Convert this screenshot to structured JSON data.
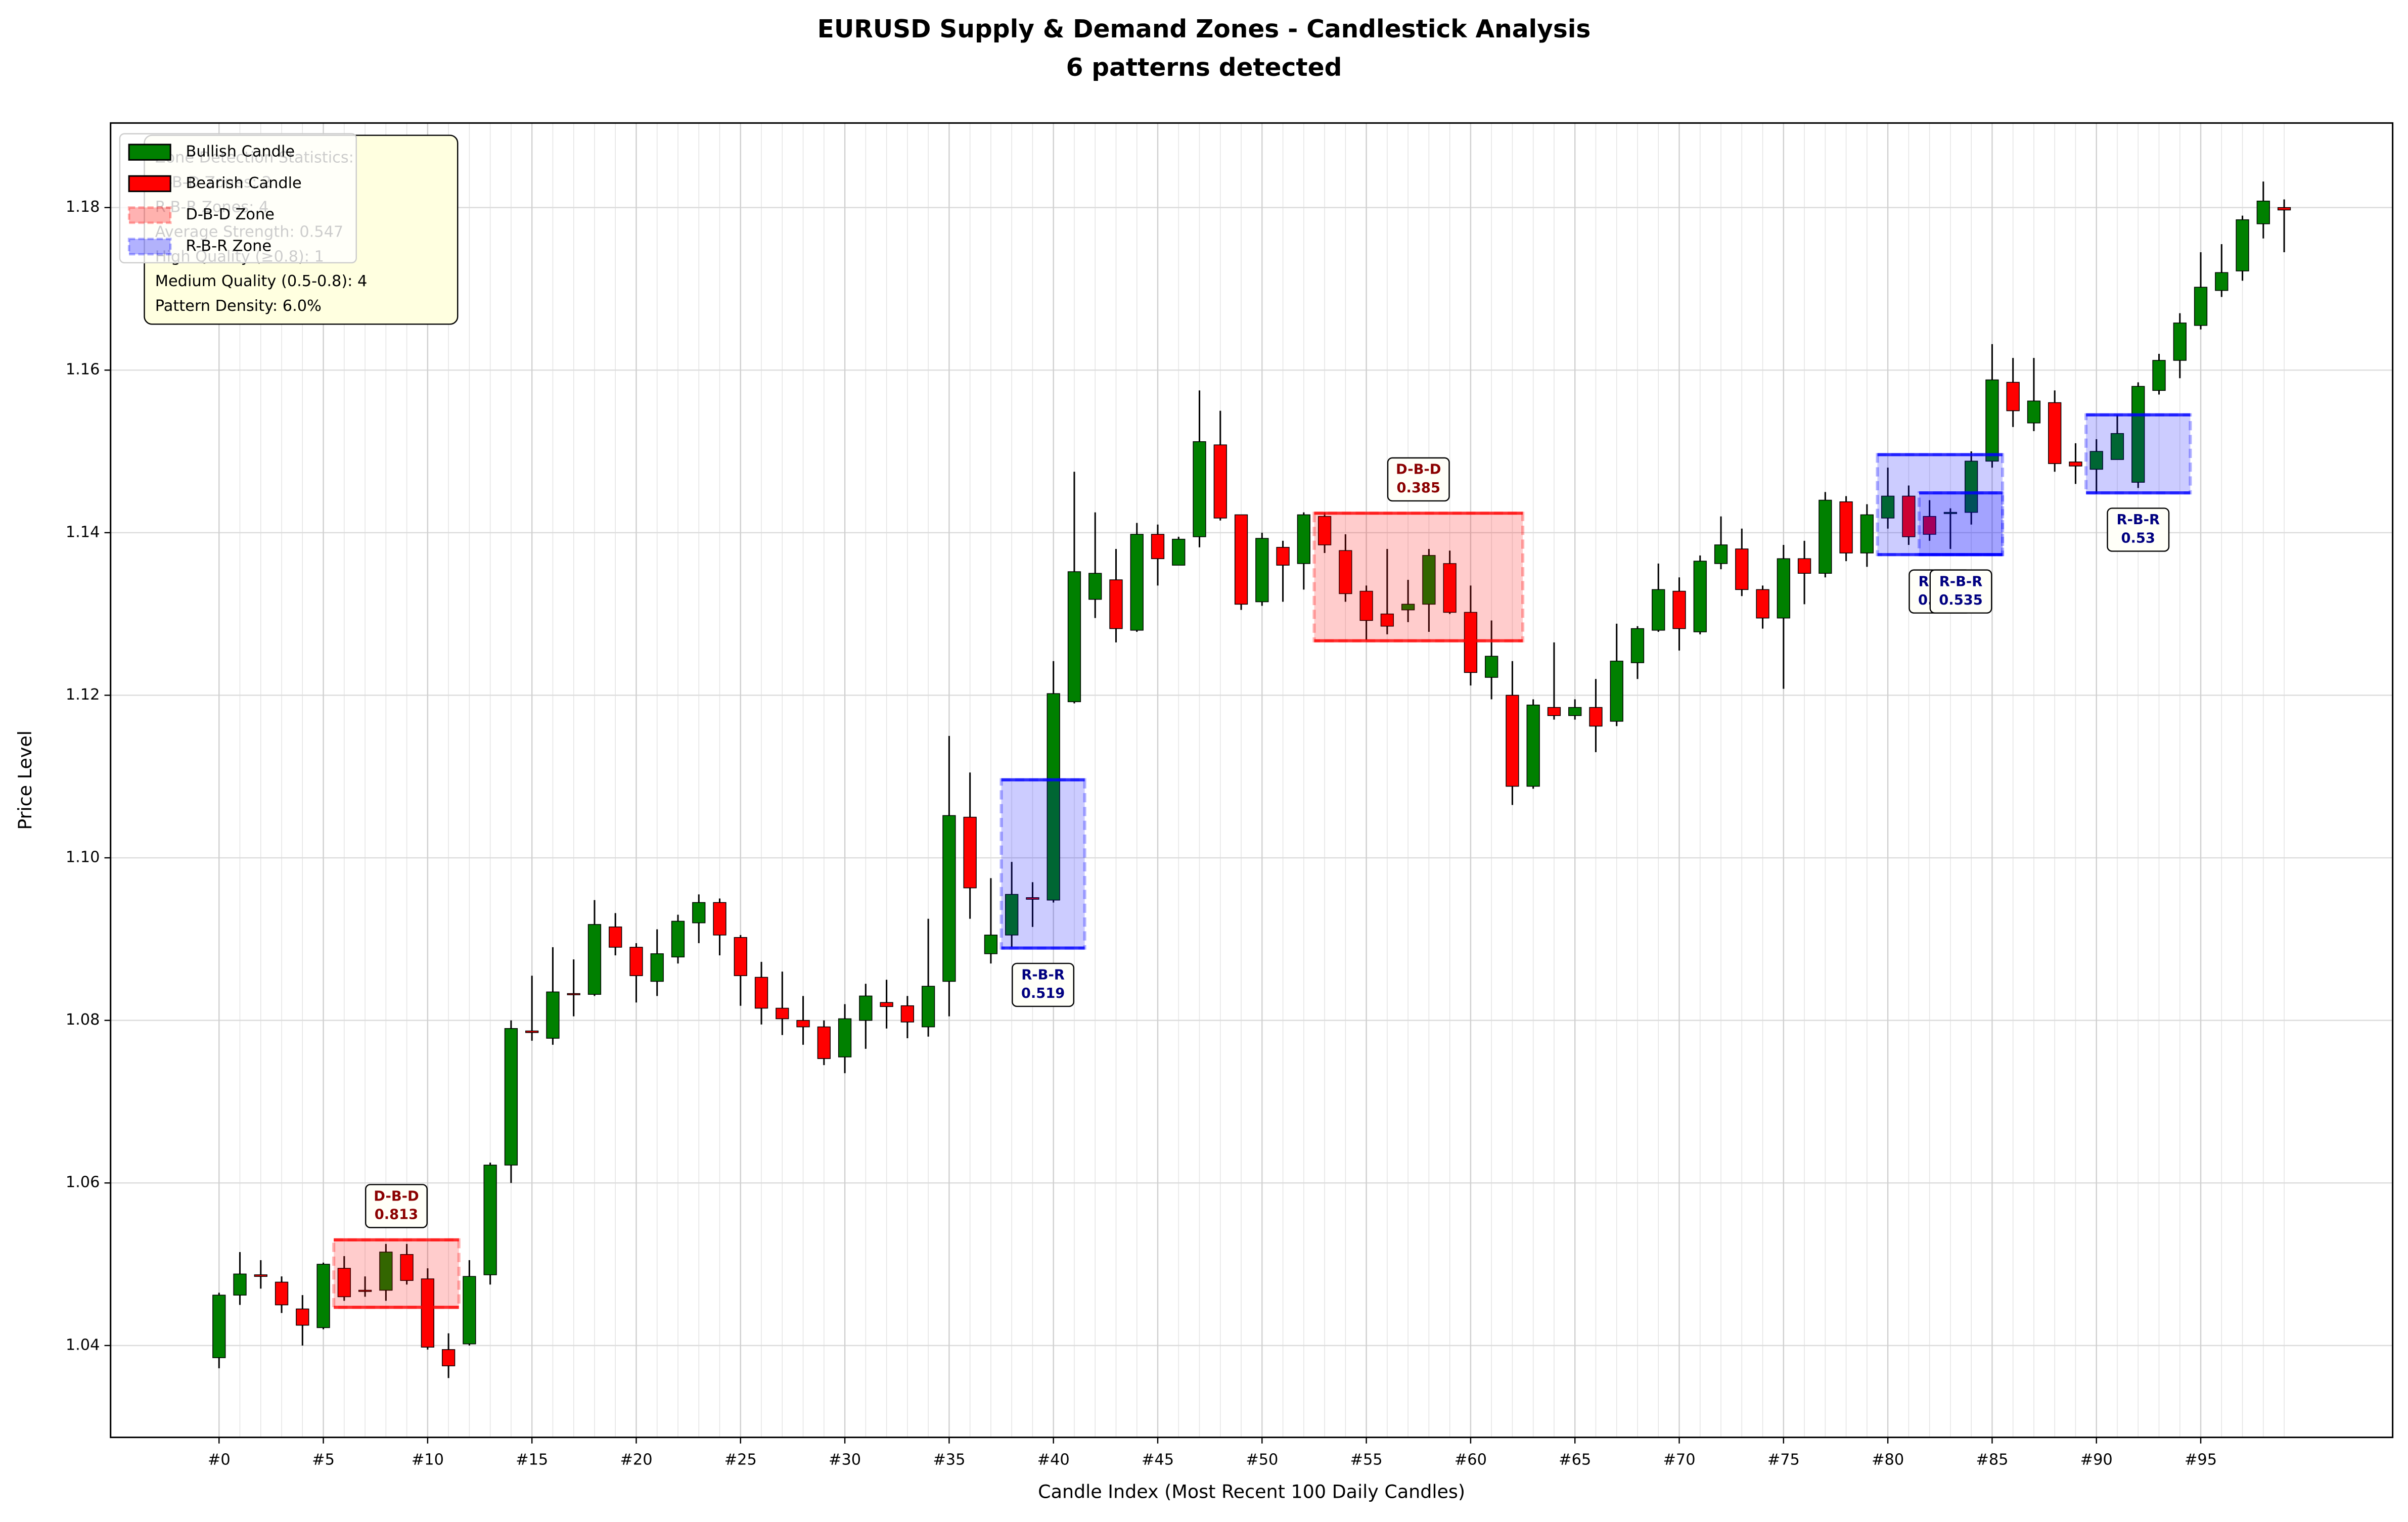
{
  "chart_data": {
    "type": "candlestick",
    "title": "EURUSD Supply & Demand Zones - Candlestick Analysis",
    "subtitle": "6 patterns detected",
    "xlabel": "Candle Index (Most Recent 100 Daily Candles)",
    "ylabel": "Price Level",
    "up_color": "#008000",
    "down_color": "#ff0000",
    "grid": true,
    "xlim": [
      -5.2,
      104.2
    ],
    "ylim": [
      1.0287,
      1.1904
    ],
    "yticks": [
      1.04,
      1.06,
      1.08,
      {
        "value": 1.1,
        "label": "1.10"
      },
      1.12,
      1.14,
      1.16,
      1.18
    ],
    "xticks": [
      {
        "value": 0,
        "label": "#0"
      },
      {
        "value": 5,
        "label": "#5"
      },
      {
        "value": 10,
        "label": "#10"
      },
      {
        "value": 15,
        "label": "#15"
      },
      {
        "value": 20,
        "label": "#20"
      },
      {
        "value": 25,
        "label": "#25"
      },
      {
        "value": 30,
        "label": "#30"
      },
      {
        "value": 35,
        "label": "#35"
      },
      {
        "value": 40,
        "label": "#40"
      },
      {
        "value": 45,
        "label": "#45"
      },
      {
        "value": 50,
        "label": "#50"
      },
      {
        "value": 55,
        "label": "#55"
      },
      {
        "value": 60,
        "label": "#60"
      },
      {
        "value": 65,
        "label": "#65"
      },
      {
        "value": 70,
        "label": "#70"
      },
      {
        "value": 75,
        "label": "#75"
      },
      {
        "value": 80,
        "label": "#80"
      },
      {
        "value": 85,
        "label": "#85"
      },
      {
        "value": 90,
        "label": "#90"
      },
      {
        "value": 95,
        "label": "#95"
      }
    ],
    "x": [
      0,
      1,
      2,
      3,
      4,
      5,
      6,
      7,
      8,
      9,
      10,
      11,
      12,
      13,
      14,
      15,
      16,
      17,
      18,
      19,
      20,
      21,
      22,
      23,
      24,
      25,
      26,
      27,
      28,
      29,
      30,
      31,
      32,
      33,
      34,
      35,
      36,
      37,
      38,
      39,
      40,
      41,
      42,
      43,
      44,
      45,
      46,
      47,
      48,
      49,
      50,
      51,
      52,
      53,
      54,
      55,
      56,
      57,
      58,
      59,
      60,
      61,
      62,
      63,
      64,
      65,
      66,
      67,
      68,
      69,
      70,
      71,
      72,
      73,
      74,
      75,
      76,
      77,
      78,
      79,
      80,
      81,
      82,
      83,
      84,
      85,
      86,
      87,
      88,
      89,
      90,
      91,
      92,
      93,
      94,
      95,
      96,
      97,
      98,
      99
    ],
    "open": [
      1.0385,
      1.0462,
      1.0487,
      1.0478,
      1.0445,
      1.0422,
      1.0495,
      1.0468,
      1.0468,
      1.0512,
      1.0482,
      1.0395,
      1.0402,
      1.0487,
      1.0622,
      1.0787,
      1.0778,
      1.0833,
      1.0832,
      1.0915,
      1.089,
      1.0848,
      1.0878,
      1.092,
      1.0945,
      1.0902,
      1.0853,
      1.0815,
      1.08,
      1.0792,
      1.0755,
      1.08,
      1.0822,
      1.0818,
      1.0792,
      1.0848,
      1.105,
      1.0882,
      1.0905,
      1.0951,
      1.0948,
      1.1192,
      1.1318,
      1.1342,
      1.128,
      1.1398,
      1.136,
      1.1395,
      1.1508,
      1.1422,
      1.1315,
      1.1382,
      1.1362,
      1.142,
      1.1378,
      1.1328,
      1.13,
      1.1305,
      1.1312,
      1.1362,
      1.1302,
      1.1222,
      1.12,
      1.1088,
      1.1185,
      1.1175,
      1.1185,
      1.1168,
      1.124,
      1.128,
      1.1328,
      1.1278,
      1.1362,
      1.138,
      1.133,
      1.1295,
      1.1368,
      1.135,
      1.1438,
      1.1375,
      1.1418,
      1.1445,
      1.142,
      1.1424,
      1.1425,
      1.1488,
      1.1585,
      1.1535,
      1.156,
      1.1487,
      1.1478,
      1.149,
      1.1462,
      1.1575,
      1.1612,
      1.1655,
      1.1698,
      1.1722,
      1.178,
      1.18
    ],
    "high": [
      1.0465,
      1.0515,
      1.0505,
      1.0485,
      1.0462,
      1.0502,
      1.051,
      1.0485,
      1.0525,
      1.0525,
      1.0495,
      1.0415,
      1.0505,
      1.0625,
      1.08,
      1.0855,
      1.089,
      1.0875,
      1.0948,
      1.0932,
      1.0895,
      1.0912,
      1.093,
      1.0955,
      1.095,
      1.0905,
      1.0872,
      1.086,
      1.083,
      1.08,
      1.082,
      1.0845,
      1.085,
      1.083,
      1.0925,
      1.115,
      1.1105,
      1.0975,
      1.0995,
      1.097,
      1.1242,
      1.1475,
      1.1425,
      1.138,
      1.1412,
      1.141,
      1.1395,
      1.1575,
      1.155,
      1.1422,
      1.14,
      1.139,
      1.1425,
      1.1425,
      1.1398,
      1.1335,
      1.138,
      1.1342,
      1.138,
      1.1378,
      1.1335,
      1.1292,
      1.1242,
      1.1195,
      1.1265,
      1.1195,
      1.122,
      1.1288,
      1.1285,
      1.1362,
      1.1345,
      1.1372,
      1.142,
      1.1405,
      1.1335,
      1.1385,
      1.139,
      1.145,
      1.1445,
      1.1435,
      1.148,
      1.1458,
      1.144,
      1.143,
      1.15,
      1.1632,
      1.1615,
      1.1615,
      1.1575,
      1.151,
      1.1515,
      1.1545,
      1.1585,
      1.162,
      1.167,
      1.1745,
      1.1755,
      1.179,
      1.1832,
      1.181
    ],
    "low": [
      1.0372,
      1.045,
      1.047,
      1.044,
      1.04,
      1.042,
      1.0455,
      1.046,
      1.0455,
      1.0475,
      1.0395,
      1.036,
      1.04,
      1.0475,
      1.06,
      1.0775,
      1.077,
      1.0805,
      1.083,
      1.088,
      1.0822,
      1.083,
      1.087,
      1.0895,
      1.088,
      1.0818,
      1.0795,
      1.0782,
      1.077,
      1.0745,
      1.0735,
      1.0765,
      1.079,
      1.0778,
      1.078,
      1.0805,
      1.0925,
      1.087,
      1.089,
      1.0915,
      1.0945,
      1.119,
      1.1295,
      1.1265,
      1.1278,
      1.1335,
      1.136,
      1.1382,
      1.1415,
      1.1305,
      1.131,
      1.1315,
      1.133,
      1.1375,
      1.1315,
      1.1268,
      1.1275,
      1.129,
      1.1278,
      1.13,
      1.1212,
      1.1195,
      1.1065,
      1.1085,
      1.117,
      1.117,
      1.113,
      1.1162,
      1.122,
      1.1278,
      1.1255,
      1.1275,
      1.1355,
      1.1322,
      1.1282,
      1.1208,
      1.1312,
      1.1345,
      1.1365,
      1.1358,
      1.1405,
      1.1385,
      1.139,
      1.138,
      1.141,
      1.148,
      1.153,
      1.1525,
      1.1475,
      1.146,
      1.1448,
      1.149,
      1.1455,
      1.157,
      1.159,
      1.165,
      1.169,
      1.171,
      1.1762,
      1.1745
    ],
    "close": [
      1.0462,
      1.0488,
      1.0485,
      1.045,
      1.0425,
      1.05,
      1.046,
      1.0467,
      1.0515,
      1.048,
      1.0398,
      1.0375,
      1.0485,
      1.0622,
      1.079,
      1.0785,
      1.0835,
      1.0832,
      1.0918,
      1.089,
      1.0855,
      1.0882,
      1.0922,
      1.0945,
      1.0905,
      1.0855,
      1.0815,
      1.0802,
      1.0792,
      1.0753,
      1.0802,
      1.083,
      1.0817,
      1.0798,
      1.0842,
      1.1052,
      1.0963,
      1.0905,
      1.0955,
      1.0949,
      1.1202,
      1.1352,
      1.135,
      1.1282,
      1.1398,
      1.1368,
      1.1392,
      1.1512,
      1.1418,
      1.1312,
      1.1393,
      1.136,
      1.1422,
      1.1385,
      1.1325,
      1.1292,
      1.1285,
      1.1312,
      1.1372,
      1.1302,
      1.1228,
      1.1248,
      1.1088,
      1.1188,
      1.1175,
      1.1185,
      1.1162,
      1.1242,
      1.1282,
      1.133,
      1.1282,
      1.1365,
      1.1385,
      1.133,
      1.1295,
      1.1368,
      1.135,
      1.144,
      1.1375,
      1.1422,
      1.1445,
      1.1395,
      1.1398,
      1.1425,
      1.1488,
      1.1588,
      1.155,
      1.1562,
      1.1485,
      1.1482,
      1.15,
      1.1522,
      1.158,
      1.1612,
      1.1658,
      1.1702,
      1.172,
      1.1785,
      1.1808,
      1.1797
    ],
    "zones": [
      {
        "pattern": "D-B-D",
        "color": "#ff0000",
        "label_color": "#8b0000",
        "start": 5.5,
        "end": 11.5,
        "top": 1.053,
        "bottom": 1.0447,
        "strength": 0.813
      },
      {
        "pattern": "R-B-R",
        "color": "#0000ff",
        "label_color": "#000080",
        "start": 37.5,
        "end": 41.5,
        "top": 1.1096,
        "bottom": 1.0889,
        "strength": 0.519
      },
      {
        "pattern": "D-B-D",
        "color": "#ff0000",
        "label_color": "#8b0000",
        "start": 52.5,
        "end": 62.5,
        "top": 1.1424,
        "bottom": 1.1267,
        "strength": 0.385
      },
      {
        "pattern": "R-B-R",
        "color": "#0000ff",
        "label_color": "#000080",
        "start": 79.5,
        "end": 85.5,
        "top": 1.1496,
        "bottom": 1.1373,
        "strength": 0.5,
        "strength_label": "0.500"
      },
      {
        "pattern": "R-B-R",
        "color": "#0000ff",
        "label_color": "#000080",
        "start": 81.5,
        "end": 85.5,
        "top": 1.1449,
        "bottom": 1.1373,
        "strength": 0.535
      },
      {
        "pattern": "R-B-R",
        "color": "#0000ff",
        "label_color": "#000080",
        "start": 89.5,
        "end": 94.5,
        "top": 1.1545,
        "bottom": 1.1449,
        "strength": 0.53
      }
    ],
    "stats_box": [
      "Zone Detection Statistics:",
      "D-B-D Zones: 2",
      "R-B-R Zones: 4",
      "Average Strength: 0.547",
      "High Quality (≥0.8): 1",
      "Medium Quality (0.5-0.8): 4",
      "Pattern Density: 6.0%"
    ],
    "legend": {
      "position": "upper left",
      "entries": [
        {
          "label": "Bullish Candle",
          "color": "#008000",
          "kind": "candle"
        },
        {
          "label": "Bearish Candle",
          "color": "#ff0000",
          "kind": "candle"
        },
        {
          "label": "D-B-D Zone",
          "color": "#ff0000",
          "kind": "zone"
        },
        {
          "label": "R-B-R Zone",
          "color": "#0000ff",
          "kind": "zone"
        }
      ]
    }
  }
}
